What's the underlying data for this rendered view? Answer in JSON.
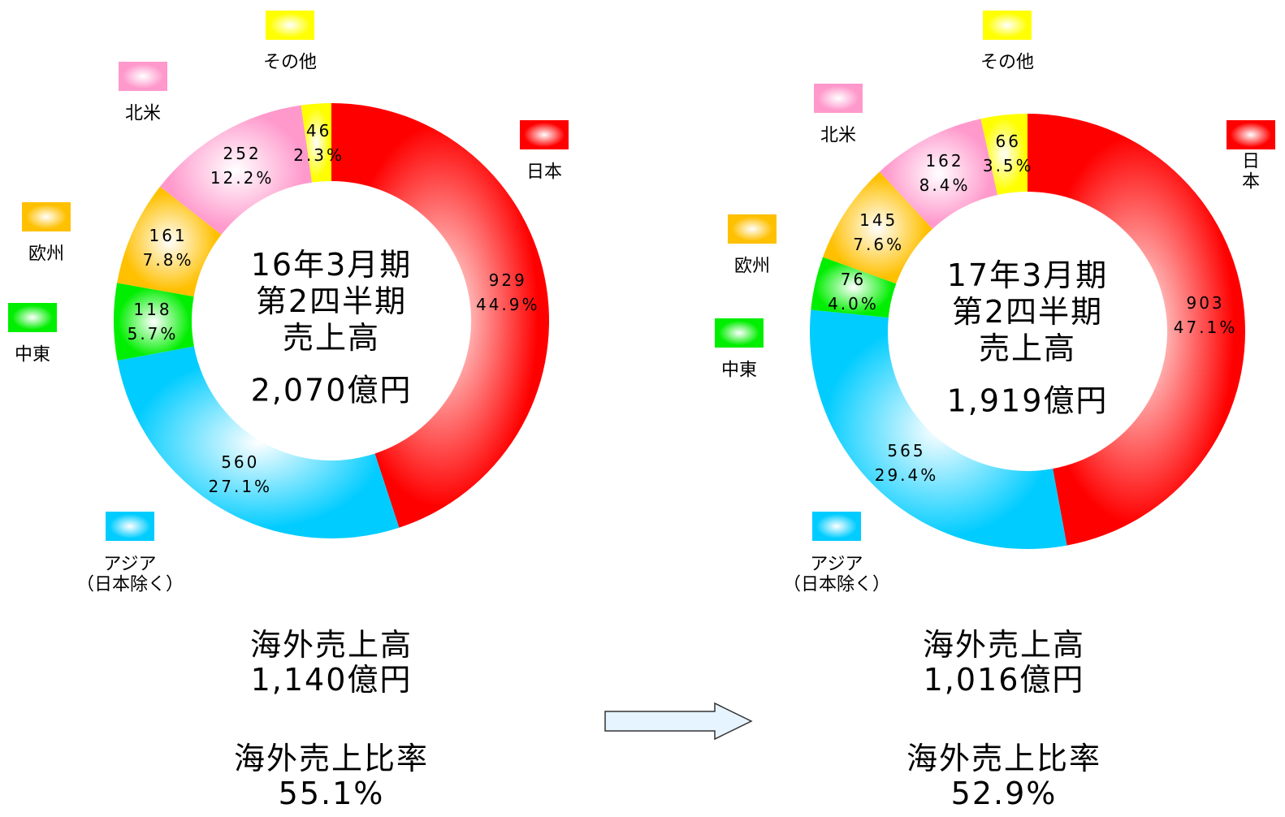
{
  "chart_data": [
    {
      "type": "donut",
      "title": "16年3月期\n第2四半期\n売上高",
      "total": "2,070億円",
      "categories": [
        "日本",
        "アジア\n（日本除く）",
        "中東",
        "欧州",
        "北米",
        "その他"
      ],
      "values": [
        929,
        560,
        118,
        161,
        252,
        46
      ],
      "shares": [
        "44.9%",
        "27.1%",
        "5.7%",
        "7.8%",
        "12.2%",
        "2.3%"
      ],
      "colors": [
        "#ff0000",
        "#00ccff",
        "#00ee00",
        "#ffc000",
        "#ff99cc",
        "#ffff00"
      ],
      "overseas_label": "海外売上高",
      "overseas_value": "1,140億円",
      "ratio_label": "海外売上比率",
      "ratio_value": "55.1%"
    },
    {
      "type": "donut",
      "title": "17年3月期\n第2四半期\n売上高",
      "total": "1,919億円",
      "categories": [
        "日本",
        "アジア\n（日本除く）",
        "中東",
        "欧州",
        "北米",
        "その他"
      ],
      "values": [
        903,
        565,
        76,
        145,
        162,
        66
      ],
      "shares": [
        "47.1%",
        "29.4%",
        "4.0%",
        "7.6%",
        "8.4%",
        "3.5%"
      ],
      "colors": [
        "#ff0000",
        "#00ccff",
        "#00ee00",
        "#ffc000",
        "#ff99cc",
        "#ffff00"
      ],
      "overseas_label": "海外売上高",
      "overseas_value": "1,016億円",
      "ratio_label": "海外売上比率",
      "ratio_value": "52.9%"
    }
  ]
}
